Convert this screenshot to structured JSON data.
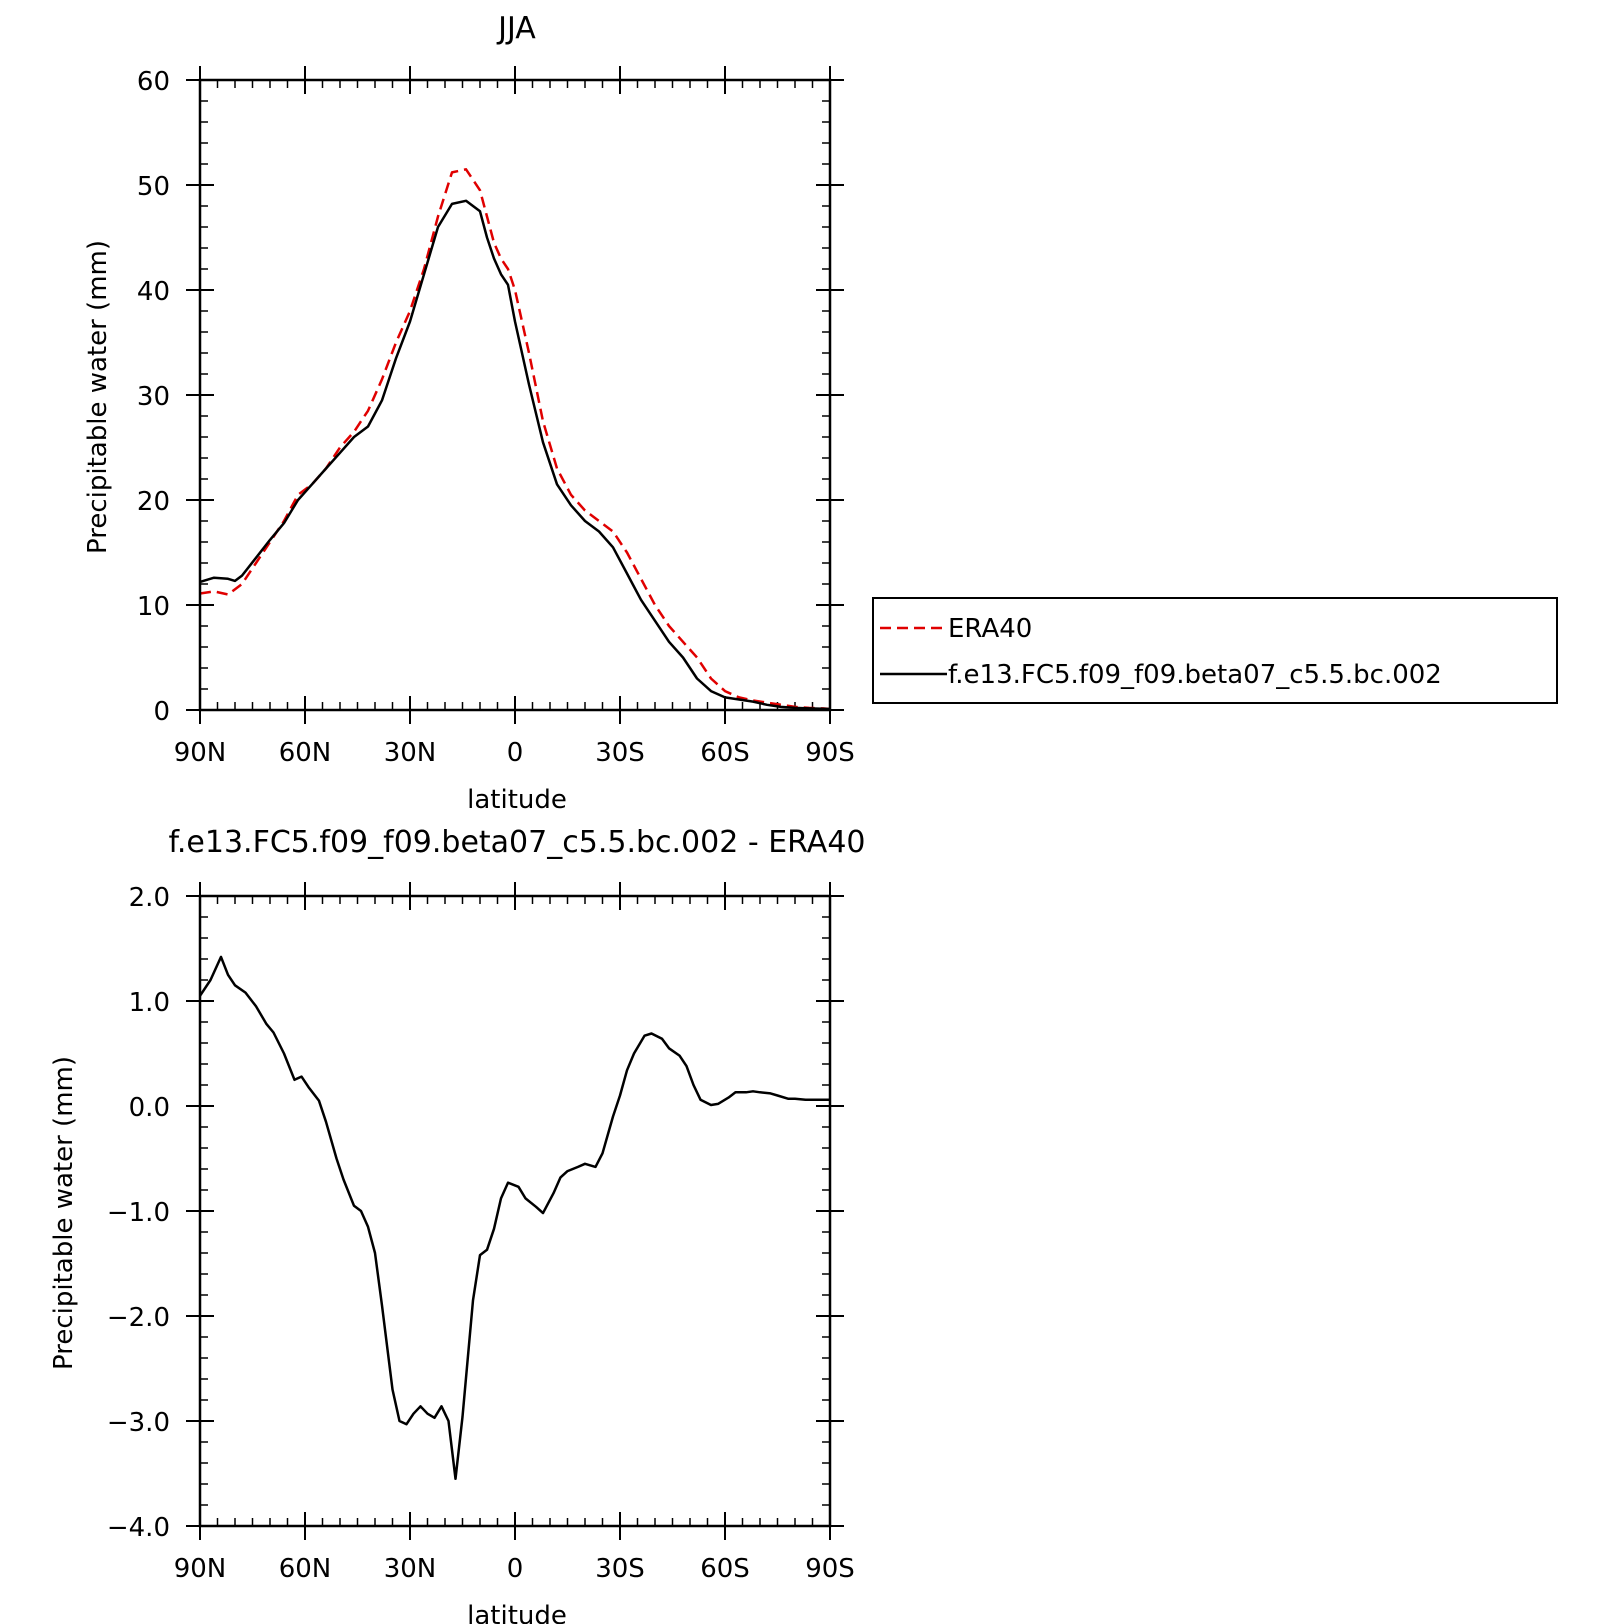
{
  "chart_data": [
    {
      "type": "line",
      "title": "JJA",
      "xlabel": "latitude",
      "ylabel": "Precipitable water (mm)",
      "xlim": [
        90,
        -90
      ],
      "ylim": [
        0,
        60
      ],
      "x_ticks": [
        90,
        60,
        30,
        0,
        -30,
        -60,
        -90
      ],
      "x_tick_labels": [
        "90N",
        "60N",
        "30N",
        "0",
        "30S",
        "60S",
        "90S"
      ],
      "y_ticks": [
        0,
        10,
        20,
        30,
        40,
        50,
        60
      ],
      "y_tick_labels": [
        "0",
        "10",
        "20",
        "30",
        "40",
        "50",
        "60"
      ],
      "legend_position": "right",
      "series": [
        {
          "name": "ERA40",
          "color": "#e00000",
          "style": "dashed",
          "x": [
            90,
            86,
            82,
            78,
            74,
            70,
            66,
            62,
            58,
            54,
            50,
            46,
            42,
            38,
            34,
            30,
            26,
            22,
            18,
            14,
            10,
            8,
            6,
            4,
            2,
            0,
            -4,
            -8,
            -12,
            -16,
            -20,
            -24,
            -28,
            -32,
            -36,
            -40,
            -44,
            -48,
            -52,
            -56,
            -60,
            -64,
            -68,
            -72,
            -76,
            -80,
            -84,
            -88,
            -90
          ],
          "y": [
            11.1,
            11.3,
            11.0,
            12.0,
            14.0,
            16.0,
            18.0,
            20.5,
            21.5,
            23.0,
            25.0,
            26.5,
            28.5,
            31.5,
            35.0,
            38.0,
            42.0,
            47.0,
            51.2,
            51.5,
            49.5,
            47.0,
            44.5,
            43.0,
            42.0,
            40.0,
            34.0,
            27.5,
            23.0,
            20.5,
            19.0,
            18.0,
            17.0,
            15.0,
            12.5,
            10.0,
            8.0,
            6.5,
            5.0,
            3.0,
            1.8,
            1.2,
            0.9,
            0.7,
            0.5,
            0.3,
            0.2,
            0.15,
            0.1
          ]
        },
        {
          "name": "f.e13.FC5.f09_f09.beta07_c5.5.bc.002",
          "color": "#000000",
          "style": "solid",
          "x": [
            90,
            86,
            82,
            80,
            78,
            74,
            70,
            66,
            62,
            58,
            54,
            50,
            46,
            42,
            38,
            34,
            30,
            26,
            22,
            18,
            14,
            10,
            8,
            6,
            4,
            2,
            0,
            -4,
            -8,
            -12,
            -16,
            -20,
            -24,
            -28,
            -32,
            -36,
            -40,
            -44,
            -48,
            -52,
            -56,
            -60,
            -64,
            -68,
            -72,
            -76,
            -80,
            -84,
            -88,
            -90
          ],
          "y": [
            12.2,
            12.6,
            12.5,
            12.3,
            12.8,
            14.5,
            16.2,
            17.8,
            20.0,
            21.5,
            23.0,
            24.5,
            26.0,
            27.0,
            29.5,
            33.5,
            37.0,
            41.5,
            46.0,
            48.2,
            48.5,
            47.5,
            45.0,
            43.0,
            41.5,
            40.5,
            37.0,
            31.0,
            25.5,
            21.5,
            19.5,
            18.0,
            17.0,
            15.5,
            13.0,
            10.5,
            8.5,
            6.5,
            5.0,
            3.0,
            1.8,
            1.2,
            1.0,
            0.8,
            0.5,
            0.3,
            0.2,
            0.15,
            0.12,
            0.1
          ]
        }
      ]
    },
    {
      "type": "line",
      "title": "f.e13.FC5.f09_f09.beta07_c5.5.bc.002 - ERA40",
      "xlabel": "latitude",
      "ylabel": "Precipitable water (mm)",
      "xlim": [
        90,
        -90
      ],
      "ylim": [
        -4.0,
        2.0
      ],
      "x_ticks": [
        90,
        60,
        30,
        0,
        -30,
        -60,
        -90
      ],
      "x_tick_labels": [
        "90N",
        "60N",
        "30N",
        "0",
        "30S",
        "60S",
        "90S"
      ],
      "y_ticks": [
        2.0,
        1.0,
        0.0,
        -1.0,
        -2.0,
        -3.0,
        -4.0
      ],
      "y_tick_labels": [
        "2.0",
        "1.0",
        "0.0",
        "−1.0",
        "−2.0",
        "−3.0",
        "−4.0"
      ],
      "series": [
        {
          "color": "#000000",
          "style": "solid",
          "x": [
            90,
            87,
            84,
            82,
            80,
            77,
            74,
            71,
            69,
            66,
            63,
            61,
            59,
            56,
            54,
            51,
            49,
            46,
            44,
            42,
            40,
            38,
            35,
            33,
            31,
            29,
            27,
            25,
            23,
            21,
            19,
            17,
            15,
            12,
            10,
            8,
            6,
            4,
            2,
            -1,
            -3,
            -6,
            -8,
            -11,
            -13,
            -15,
            -18,
            -20,
            -23,
            -25,
            -28,
            -30,
            -32,
            -34,
            -37,
            -39,
            -42,
            -44,
            -47,
            -49,
            -51,
            -53,
            -56,
            -58,
            -61,
            -63,
            -66,
            -68,
            -70,
            -73,
            -75,
            -78,
            -80,
            -83,
            -85,
            -88,
            -90
          ],
          "y": [
            1.05,
            1.2,
            1.42,
            1.25,
            1.15,
            1.08,
            0.95,
            0.78,
            0.7,
            0.5,
            0.25,
            0.28,
            0.18,
            0.05,
            -0.15,
            -0.5,
            -0.7,
            -0.95,
            -1.0,
            -1.15,
            -1.4,
            -1.9,
            -2.7,
            -3.0,
            -3.03,
            -2.93,
            -2.86,
            -2.93,
            -2.97,
            -2.86,
            -3.0,
            -3.55,
            -2.96,
            -1.85,
            -1.42,
            -1.37,
            -1.17,
            -0.88,
            -0.73,
            -0.77,
            -0.88,
            -0.96,
            -1.02,
            -0.83,
            -0.68,
            -0.62,
            -0.58,
            -0.55,
            -0.58,
            -0.45,
            -0.1,
            0.1,
            0.34,
            0.5,
            0.67,
            0.69,
            0.64,
            0.55,
            0.48,
            0.38,
            0.2,
            0.06,
            0.01,
            0.02,
            0.08,
            0.13,
            0.13,
            0.14,
            0.13,
            0.12,
            0.1,
            0.07,
            0.07,
            0.06,
            0.06,
            0.06,
            0.06
          ]
        }
      ]
    }
  ]
}
